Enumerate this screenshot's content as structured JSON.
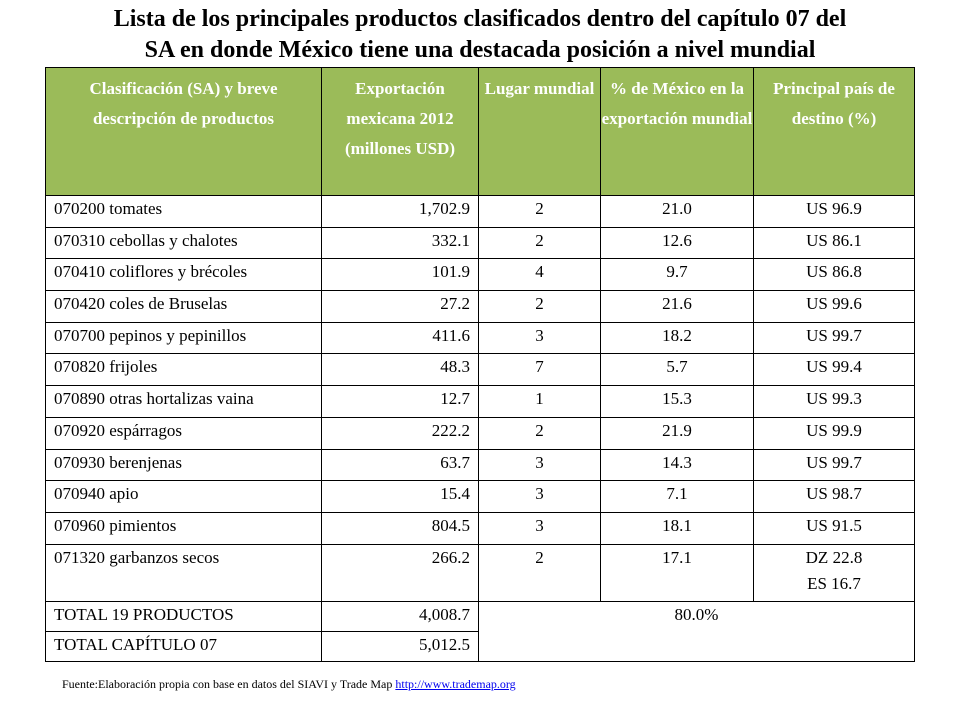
{
  "title": {
    "line1": "Lista de los principales productos clasificados dentro del capítulo 07 del",
    "line2": "SA en donde México tiene una destacada posición a nivel mundial"
  },
  "table": {
    "headers": [
      "Clasificación (SA) y breve descripción de productos",
      "Exportación mexicana 2012 (millones USD)",
      "Lugar mundial",
      "% de México en la exportación mundial",
      "Principal país de destino (%)"
    ],
    "rows": [
      {
        "desc": "070200 tomates",
        "export": "1,702.9",
        "rank": "2",
        "share": "21.0",
        "dest": "US 96.9"
      },
      {
        "desc": "070310 cebollas y chalotes",
        "export": "332.1",
        "rank": "2",
        "share": "12.6",
        "dest": "US 86.1"
      },
      {
        "desc": "070410 coliflores y brécoles",
        "export": "101.9",
        "rank": "4",
        "share": "9.7",
        "dest": "US 86.8"
      },
      {
        "desc": "070420 coles de Bruselas",
        "export": "27.2",
        "rank": "2",
        "share": "21.6",
        "dest": "US 99.6"
      },
      {
        "desc": "070700 pepinos y pepinillos",
        "export": "411.6",
        "rank": "3",
        "share": "18.2",
        "dest": "US 99.7"
      },
      {
        "desc": "070820 frijoles",
        "export": "48.3",
        "rank": "7",
        "share": "5.7",
        "dest": "US 99.4"
      },
      {
        "desc": "070890 otras hortalizas vaina",
        "export": "12.7",
        "rank": "1",
        "share": "15.3",
        "dest": "US 99.3"
      },
      {
        "desc": "070920 espárragos",
        "export": "222.2",
        "rank": "2",
        "share": "21.9",
        "dest": "US 99.9"
      },
      {
        "desc": "070930 berenjenas",
        "export": "63.7",
        "rank": "3",
        "share": "14.3",
        "dest": "US 99.7"
      },
      {
        "desc": "070940 apio",
        "export": "15.4",
        "rank": "3",
        "share": "7.1",
        "dest": "US 98.7"
      },
      {
        "desc": "070960 pimientos",
        "export": "804.5",
        "rank": "3",
        "share": "18.1",
        "dest": "US 91.5"
      },
      {
        "desc": "071320 garbanzos secos",
        "export": "266.2",
        "rank": "2",
        "share": "17.1",
        "dest": "DZ 22.8",
        "dest2": "ES 16.7"
      }
    ],
    "totals": {
      "products_label": "TOTAL 19 PRODUCTOS",
      "products_value": "4,008.7",
      "chapter_label": "TOTAL CAPÍTULO 07",
      "chapter_value": "5,012.5",
      "share": "80.0%"
    }
  },
  "source": {
    "text": "Fuente:Elaboración propia con base en datos del SIAVI y Trade Map ",
    "link": "http://www.trademap.org"
  },
  "colors": {
    "header_bg": "#9bbb59",
    "header_text": "#ffffff",
    "link": "#0000ee"
  }
}
